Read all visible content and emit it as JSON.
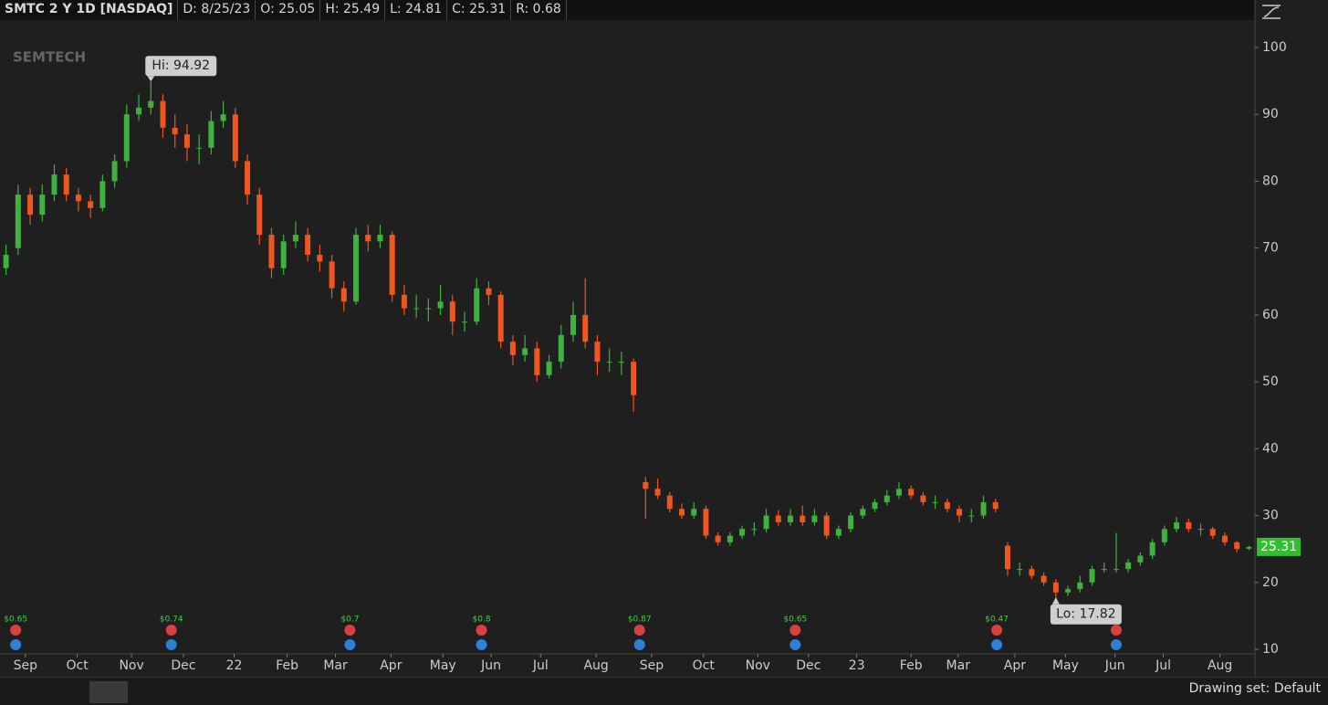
{
  "header": [
    "SMTC 2 Y 1D [NASDAQ]",
    "D: 8/25/23",
    "O: 25.05",
    "H: 25.49",
    "L: 24.81",
    "C: 25.31",
    "R: 0.68"
  ],
  "footer": "Drawing set: Default",
  "chart_data": {
    "type": "candlestick",
    "logo": "SEMTECH",
    "up_color": "#3fb13f",
    "down_color": "#f0561d",
    "xlim": [
      -0.5,
      103.5
    ],
    "xticks": [
      {
        "value": 1.6,
        "label": "Sep"
      },
      {
        "value": 5.9,
        "label": "Oct"
      },
      {
        "value": 10.4,
        "label": "Nov"
      },
      {
        "value": 14.7,
        "label": "Dec"
      },
      {
        "value": 18.9,
        "label": "22"
      },
      {
        "value": 23.3,
        "label": "Feb"
      },
      {
        "value": 27.3,
        "label": "Mar"
      },
      {
        "value": 31.9,
        "label": "Apr"
      },
      {
        "value": 36.2,
        "label": "May"
      },
      {
        "value": 40.2,
        "label": "Jun"
      },
      {
        "value": 44.3,
        "label": "Jul"
      },
      {
        "value": 48.9,
        "label": "Aug"
      },
      {
        "value": 53.5,
        "label": "Sep"
      },
      {
        "value": 57.8,
        "label": "Oct"
      },
      {
        "value": 62.3,
        "label": "Nov"
      },
      {
        "value": 66.5,
        "label": "Dec"
      },
      {
        "value": 70.5,
        "label": "23"
      },
      {
        "value": 75.0,
        "label": "Feb"
      },
      {
        "value": 78.9,
        "label": "Mar"
      },
      {
        "value": 83.6,
        "label": "Apr"
      },
      {
        "value": 87.8,
        "label": "May"
      },
      {
        "value": 91.9,
        "label": "Jun"
      },
      {
        "value": 95.9,
        "label": "Jul"
      },
      {
        "value": 100.6,
        "label": "Aug"
      }
    ],
    "ylim": [
      10,
      100
    ],
    "yticks": [
      10,
      20,
      30,
      40,
      50,
      60,
      70,
      80,
      90,
      100
    ],
    "open": [
      67,
      70,
      78,
      75,
      78,
      81,
      78,
      77,
      76,
      80,
      83,
      90,
      91,
      92,
      88,
      87,
      85,
      85,
      89,
      90,
      83,
      78,
      72,
      67,
      71,
      72,
      69,
      68,
      64,
      62,
      72,
      71,
      72,
      63,
      61,
      61,
      61,
      62,
      59,
      59,
      64,
      63,
      56,
      54,
      55,
      51,
      53,
      57,
      60,
      56,
      53,
      53,
      53,
      35,
      34,
      33,
      31,
      30,
      31,
      27,
      26,
      27,
      28,
      28,
      30,
      29,
      30,
      29,
      30,
      27,
      28,
      30,
      31,
      32,
      33,
      34,
      33,
      32,
      32,
      31,
      30,
      30,
      32,
      25.5,
      22,
      22,
      21,
      20,
      18.5,
      19,
      20,
      22,
      22,
      22,
      23,
      24,
      26,
      28,
      29,
      28,
      28,
      27,
      26,
      25.05
    ],
    "high": [
      70.5,
      79.5,
      79,
      79.5,
      82.5,
      82,
      79,
      78,
      81,
      84,
      91.5,
      93,
      94.92,
      93,
      90,
      88.5,
      87,
      90.5,
      92,
      91,
      84,
      79,
      73,
      72,
      74,
      73,
      70.5,
      69,
      65,
      73,
      73.5,
      73.5,
      72.5,
      64.5,
      63,
      62.5,
      64.5,
      63,
      60.5,
      65.5,
      65,
      63.5,
      57,
      57,
      56,
      54,
      58.5,
      62,
      65.5,
      57,
      55,
      54.5,
      53.5,
      35.8,
      35.5,
      33.5,
      31.8,
      32,
      31.5,
      27.5,
      27.5,
      28.5,
      29,
      31,
      30.8,
      31,
      31.5,
      31,
      30.5,
      28.5,
      30.5,
      31.5,
      32.5,
      33.8,
      35,
      34.5,
      33.5,
      33,
      32.5,
      31.5,
      31,
      33,
      32.5,
      26,
      23,
      22.5,
      21.5,
      20.5,
      19.5,
      21,
      22.5,
      23,
      27.4,
      23.5,
      24.5,
      26.5,
      28.5,
      29.8,
      29.5,
      28.8,
      28.3,
      27.5,
      26.2,
      25.49
    ],
    "low": [
      66,
      69,
      73.5,
      74,
      77,
      77,
      75.5,
      74.5,
      75.5,
      79,
      82,
      89,
      90,
      86.5,
      85,
      83,
      82.5,
      84,
      88,
      82,
      76.5,
      70.5,
      65.5,
      66,
      70,
      68,
      66.5,
      62.5,
      60.5,
      61.5,
      69.5,
      70,
      62,
      60,
      59.5,
      59,
      60,
      57,
      57.5,
      58.5,
      61.5,
      55,
      52.5,
      53,
      50,
      50.5,
      52,
      56,
      55,
      51,
      51.5,
      51,
      45.5,
      29.5,
      32.5,
      30.5,
      29.5,
      29.5,
      26.5,
      25.5,
      25.5,
      26.5,
      27,
      27.5,
      28.5,
      28.5,
      28.5,
      28.5,
      26.5,
      26.5,
      27.5,
      29.5,
      30.5,
      31.5,
      32.5,
      32.5,
      31.5,
      31,
      30.5,
      29,
      29,
      29.5,
      30.5,
      21,
      21,
      20.5,
      19.5,
      17.82,
      18,
      18.5,
      19.5,
      21.5,
      21.5,
      21.5,
      22.5,
      23.5,
      25.5,
      27.5,
      27.5,
      27,
      26.5,
      25.5,
      24.5,
      24.81
    ],
    "close": [
      69,
      78,
      75,
      78,
      81,
      78,
      77,
      76,
      80,
      83,
      90,
      91,
      92,
      88,
      87,
      85,
      85,
      89,
      90,
      83,
      78,
      72,
      67,
      71,
      72,
      69,
      68,
      64,
      62,
      72,
      71,
      72,
      63,
      61,
      61,
      61,
      62,
      59,
      59,
      64,
      63,
      56,
      54,
      55,
      51,
      53,
      57,
      60,
      56,
      53,
      53,
      53,
      48,
      34,
      33,
      31,
      30,
      31,
      27,
      26,
      27,
      28,
      28,
      30,
      29,
      30,
      29,
      30,
      27,
      28,
      30,
      31,
      32,
      33,
      34,
      33,
      32,
      32,
      31,
      30,
      30,
      32,
      31,
      22,
      22,
      21,
      20,
      18.5,
      19,
      20,
      22,
      22,
      22,
      23,
      24,
      26,
      28,
      29,
      28,
      28,
      27,
      26,
      25,
      25.31
    ],
    "annotations": [
      {
        "text": "Hi: 94.92",
        "x": 12,
        "y": 94.92
      },
      {
        "text": "Lo: 17.82",
        "x": 87,
        "y": 17.82
      }
    ],
    "last_price": {
      "text": "25.31",
      "y": 25.31
    },
    "dividends": [
      {
        "x": 0.8,
        "label": "$0.65"
      },
      {
        "x": 13.7,
        "label": "$0.74"
      },
      {
        "x": 28.5,
        "label": "$0.7"
      },
      {
        "x": 39.4,
        "label": "$0.8"
      },
      {
        "x": 52.5,
        "label": "$0.87"
      },
      {
        "x": 65.4,
        "label": "$0.65"
      },
      {
        "x": 82.1,
        "label": "$0.47"
      }
    ],
    "earnings_x": [
      0.8,
      13.7,
      28.5,
      39.4,
      52.5,
      65.4,
      82.1,
      92.0
    ]
  }
}
